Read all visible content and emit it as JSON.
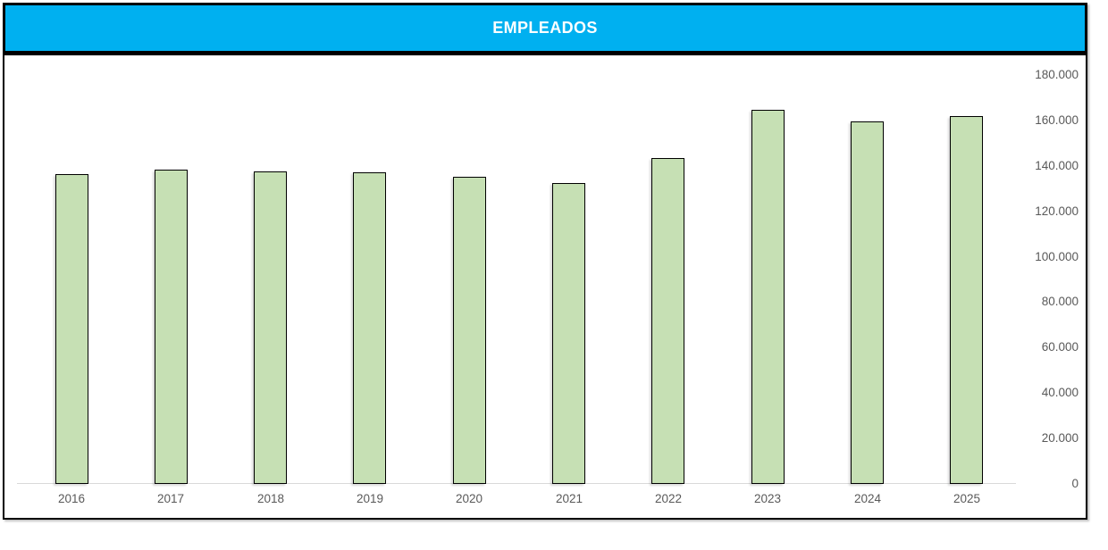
{
  "title": {
    "text": "EMPLEADOS"
  },
  "colors": {
    "banner_bg": "#00B0F0",
    "banner_border": "#000000",
    "banner_text": "#FFFFFF",
    "box_border": "#000000",
    "bar_fill": "#C6E0B4",
    "bar_border": "#000000",
    "axis_text": "#595959",
    "axis_line": "#D9D9D9"
  },
  "chart_data": {
    "type": "bar",
    "title": "EMPLEADOS",
    "categories": [
      "2016",
      "2017",
      "2018",
      "2019",
      "2020",
      "2021",
      "2022",
      "2023",
      "2024",
      "2025"
    ],
    "values": [
      136500,
      138500,
      137500,
      137000,
      135000,
      132500,
      143500,
      164500,
      159500,
      162000
    ],
    "xlabel": "",
    "ylabel": "",
    "ylim": [
      0,
      180000
    ],
    "y_tick_step": 20000,
    "y_tick_labels": [
      "0",
      "20.000",
      "40.000",
      "60.000",
      "80.000",
      "100.000",
      "120.000",
      "140.000",
      "160.000",
      "180.000"
    ],
    "y_axis_side": "right",
    "grid": false,
    "legend": false
  }
}
